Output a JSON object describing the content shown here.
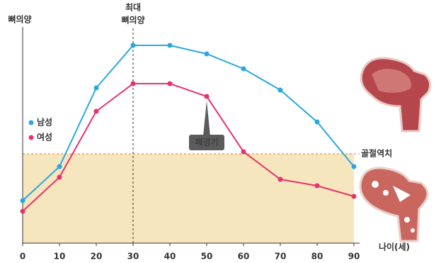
{
  "chart_data": {
    "type": "line",
    "y_label": "뼈의양",
    "x_label": "나이(세)",
    "peak_annotation": [
      "최대",
      "뼈의양"
    ],
    "peak_age": 30,
    "menopause_label": "폐경기",
    "menopause_age": 50,
    "threshold_label": "골절역치",
    "threshold": 42,
    "threshold_color": "#e8742a",
    "shade_color": "#f6e6bd",
    "x": [
      0,
      10,
      20,
      30,
      40,
      50,
      60,
      70,
      80,
      90
    ],
    "xlim": [
      0,
      90
    ],
    "xticks": [
      0,
      10,
      20,
      30,
      40,
      50,
      60,
      70,
      80,
      90
    ],
    "ylim": [
      0,
      100
    ],
    "series": [
      {
        "name": "남성",
        "color": "#2aa7e0",
        "values": [
          20,
          36,
          73,
          93,
          93,
          89,
          82,
          72,
          57,
          36
        ]
      },
      {
        "name": "여성",
        "color": "#e7336c",
        "values": [
          15,
          31,
          62,
          75,
          75,
          69,
          43,
          30,
          27,
          22
        ]
      }
    ]
  }
}
